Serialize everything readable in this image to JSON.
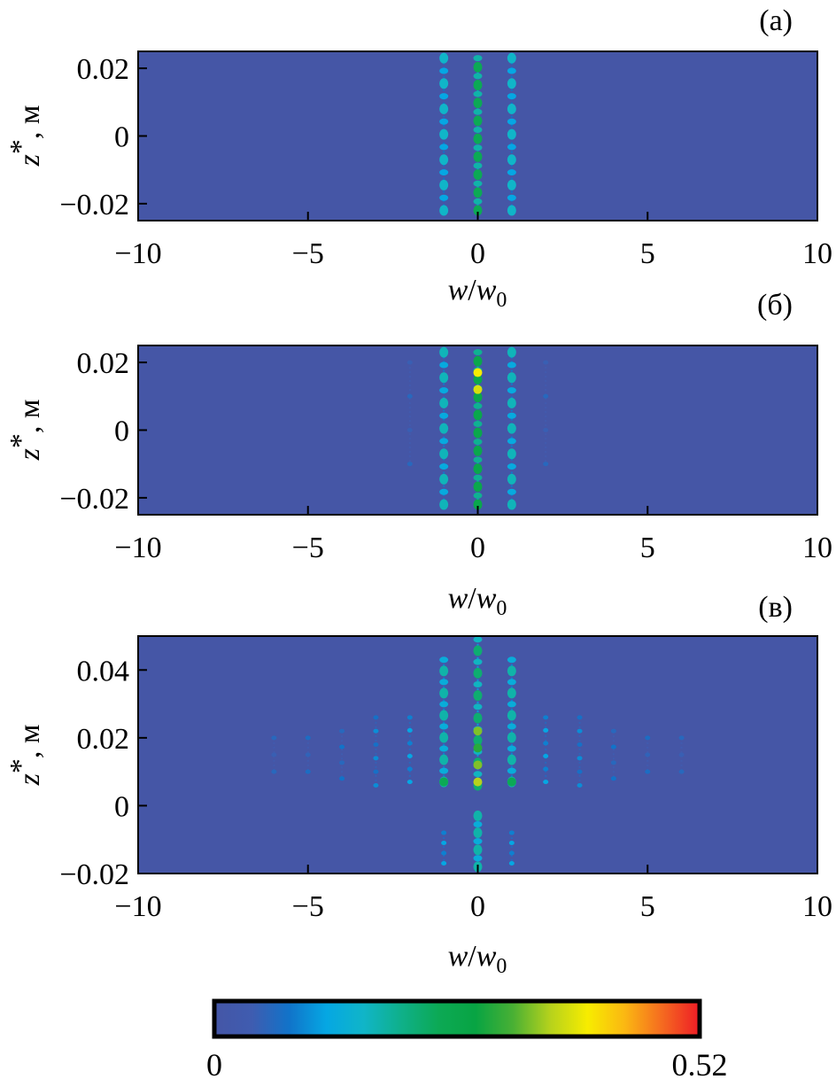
{
  "chart_data": [
    {
      "type": "heatmap",
      "panel_label": "(a)",
      "xlabel": {
        "var": "w",
        "sep": "/",
        "var2": "w",
        "sub": "0"
      },
      "ylabel": {
        "var": "z",
        "sup": "*",
        "unit": ", м"
      },
      "xlim": [
        -10,
        10
      ],
      "ylim": [
        -0.025,
        0.025
      ],
      "xticks": [
        -10,
        -5,
        0,
        5,
        10
      ],
      "xtick_labels": [
        "−10",
        "−5",
        "0",
        "5",
        "10"
      ],
      "yticks": [
        0.02,
        0,
        -0.02
      ],
      "ytick_labels": [
        "0.02",
        "0",
        "−0.02"
      ],
      "background_value": 0,
      "columns": [
        {
          "x": -1,
          "z_from": -0.022,
          "z_to": 0.023,
          "count": 13,
          "value": 0.16
        },
        {
          "x": 0,
          "z_from": -0.022,
          "z_to": 0.023,
          "count": 18,
          "value": 0.24
        },
        {
          "x": 1,
          "z_from": -0.022,
          "z_to": 0.023,
          "count": 13,
          "value": 0.16
        }
      ]
    },
    {
      "type": "heatmap",
      "panel_label": "(б)",
      "xlabel": {
        "var": "w",
        "sep": "/",
        "var2": "w",
        "sub": "0"
      },
      "ylabel": {
        "var": "z",
        "sup": "*",
        "unit": ", м"
      },
      "xlim": [
        -10,
        10
      ],
      "ylim": [
        -0.025,
        0.025
      ],
      "xticks": [
        -10,
        -5,
        0,
        5,
        10
      ],
      "xtick_labels": [
        "−10",
        "−5",
        "0",
        "5",
        "10"
      ],
      "yticks": [
        0.02,
        0,
        -0.02
      ],
      "ytick_labels": [
        "0.02",
        "0",
        "−0.02"
      ],
      "background_value": 0,
      "columns": [
        {
          "x": -2,
          "z_from": -0.01,
          "z_to": 0.02,
          "count": 4,
          "value": 0.06
        },
        {
          "x": -1,
          "z_from": -0.022,
          "z_to": 0.023,
          "count": 13,
          "value": 0.17
        },
        {
          "x": 0,
          "z_from": -0.022,
          "z_to": 0.023,
          "count": 18,
          "value": 0.26
        },
        {
          "x": 1,
          "z_from": -0.022,
          "z_to": 0.023,
          "count": 13,
          "value": 0.17
        },
        {
          "x": 2,
          "z_from": -0.01,
          "z_to": 0.02,
          "count": 4,
          "value": 0.06
        }
      ],
      "hotspots": [
        {
          "x": 0,
          "z": 0.017,
          "value": 0.4
        },
        {
          "x": 0,
          "z": 0.012,
          "value": 0.38
        }
      ]
    },
    {
      "type": "heatmap",
      "panel_label": "(в)",
      "xlabel": {
        "var": "w",
        "sep": "/",
        "var2": "w",
        "sub": "0"
      },
      "ylabel": {
        "var": "z",
        "sup": "*",
        "unit": ", м"
      },
      "xlim": [
        -10,
        10
      ],
      "ylim": [
        -0.02,
        0.05
      ],
      "xticks": [
        -10,
        -5,
        0,
        5,
        10
      ],
      "xtick_labels": [
        "−10",
        "−5",
        "0",
        "5",
        "10"
      ],
      "yticks": [
        0.04,
        0.02,
        0,
        -0.02
      ],
      "ytick_labels": [
        "0.04",
        "0.02",
        "0",
        "−0.02"
      ],
      "background_value": 0,
      "columns": [
        {
          "x": -6,
          "z_from": 0.01,
          "z_to": 0.02,
          "count": 3,
          "value": 0.06
        },
        {
          "x": -5,
          "z_from": 0.01,
          "z_to": 0.02,
          "count": 3,
          "value": 0.07
        },
        {
          "x": -4,
          "z_from": 0.008,
          "z_to": 0.022,
          "count": 4,
          "value": 0.08
        },
        {
          "x": -3,
          "z_from": 0.006,
          "z_to": 0.026,
          "count": 6,
          "value": 0.1
        },
        {
          "x": -2,
          "z_from": 0.007,
          "z_to": 0.026,
          "count": 6,
          "value": 0.12
        },
        {
          "x": -1,
          "z_from": 0.007,
          "z_to": 0.043,
          "count": 12,
          "value": 0.18
        },
        {
          "x": -1,
          "z_from": -0.017,
          "z_to": -0.008,
          "count": 4,
          "value": 0.12
        },
        {
          "x": 0,
          "z_from": 0.006,
          "z_to": 0.049,
          "count": 14,
          "value": 0.22
        },
        {
          "x": 0,
          "z_from": -0.018,
          "z_to": -0.003,
          "count": 7,
          "value": 0.18
        },
        {
          "x": 1,
          "z_from": 0.007,
          "z_to": 0.043,
          "count": 12,
          "value": 0.18
        },
        {
          "x": 1,
          "z_from": -0.017,
          "z_to": -0.008,
          "count": 4,
          "value": 0.12
        },
        {
          "x": 2,
          "z_from": 0.007,
          "z_to": 0.026,
          "count": 6,
          "value": 0.12
        },
        {
          "x": 3,
          "z_from": 0.006,
          "z_to": 0.026,
          "count": 6,
          "value": 0.1
        },
        {
          "x": 4,
          "z_from": 0.008,
          "z_to": 0.022,
          "count": 4,
          "value": 0.08
        },
        {
          "x": 5,
          "z_from": 0.01,
          "z_to": 0.02,
          "count": 3,
          "value": 0.07
        },
        {
          "x": 6,
          "z_from": 0.01,
          "z_to": 0.02,
          "count": 3,
          "value": 0.06
        }
      ],
      "hotspots": [
        {
          "x": 0,
          "z": 0.022,
          "value": 0.34
        },
        {
          "x": 0,
          "z": 0.017,
          "value": 0.3
        },
        {
          "x": 0,
          "z": 0.012,
          "value": 0.34
        },
        {
          "x": 0,
          "z": 0.007,
          "value": 0.36
        },
        {
          "x": -1,
          "z": 0.007,
          "value": 0.24
        },
        {
          "x": 1,
          "z": 0.007,
          "value": 0.24
        }
      ]
    }
  ],
  "colorbar": {
    "min_label": "0",
    "max_label": "0.52",
    "min": 0,
    "max": 0.52,
    "colors": [
      "#4556a6",
      "#3f5cb0",
      "#1173c9",
      "#05a7e3",
      "#10b5c8",
      "#0fb08a",
      "#0ca955",
      "#08a443",
      "#49b034",
      "#b6d21c",
      "#f7ec00",
      "#fbb712",
      "#f56a20",
      "#ee1c26"
    ]
  }
}
